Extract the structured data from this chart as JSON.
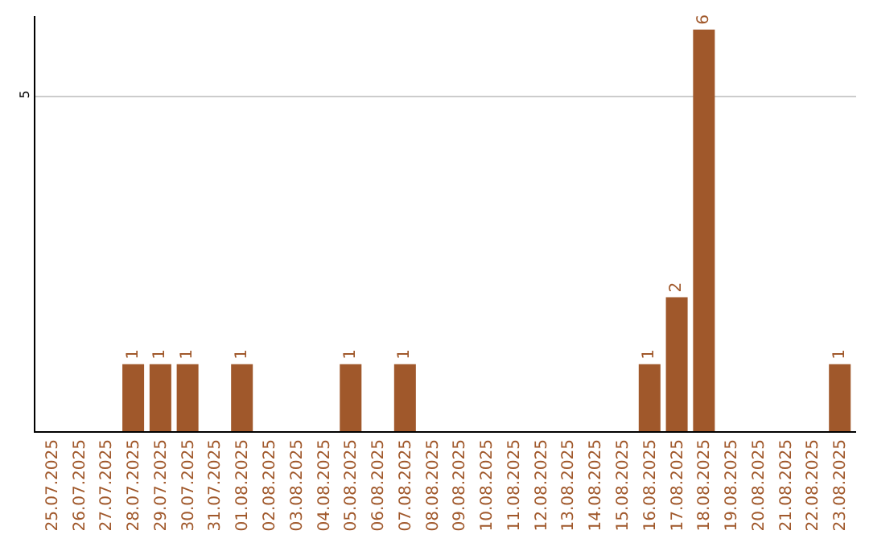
{
  "chart_data": {
    "type": "bar",
    "categories": [
      "25.07.2025",
      "26.07.2025",
      "27.07.2025",
      "28.07.2025",
      "29.07.2025",
      "30.07.2025",
      "31.07.2025",
      "01.08.2025",
      "02.08.2025",
      "03.08.2025",
      "04.08.2025",
      "05.08.2025",
      "06.08.2025",
      "07.08.2025",
      "08.08.2025",
      "09.08.2025",
      "10.08.2025",
      "11.08.2025",
      "12.08.2025",
      "13.08.2025",
      "14.08.2025",
      "15.08.2025",
      "16.08.2025",
      "17.08.2025",
      "18.08.2025",
      "19.08.2025",
      "20.08.2025",
      "21.08.2025",
      "22.08.2025",
      "23.08.2025"
    ],
    "values": [
      0,
      0,
      0,
      1,
      1,
      1,
      0,
      1,
      0,
      0,
      0,
      1,
      0,
      1,
      0,
      0,
      0,
      0,
      0,
      0,
      0,
      0,
      1,
      2,
      6,
      0,
      0,
      0,
      0,
      1
    ],
    "value_labels": [
      null,
      null,
      null,
      "1",
      "1",
      "1",
      null,
      "1",
      null,
      null,
      null,
      "1",
      null,
      "1",
      null,
      null,
      null,
      null,
      null,
      null,
      null,
      null,
      "1",
      "2",
      "6",
      null,
      null,
      null,
      null,
      "1"
    ],
    "color": "#a0582b",
    "ylim": [
      0,
      6.2
    ],
    "yticks": [
      5
    ],
    "grid": "y"
  }
}
